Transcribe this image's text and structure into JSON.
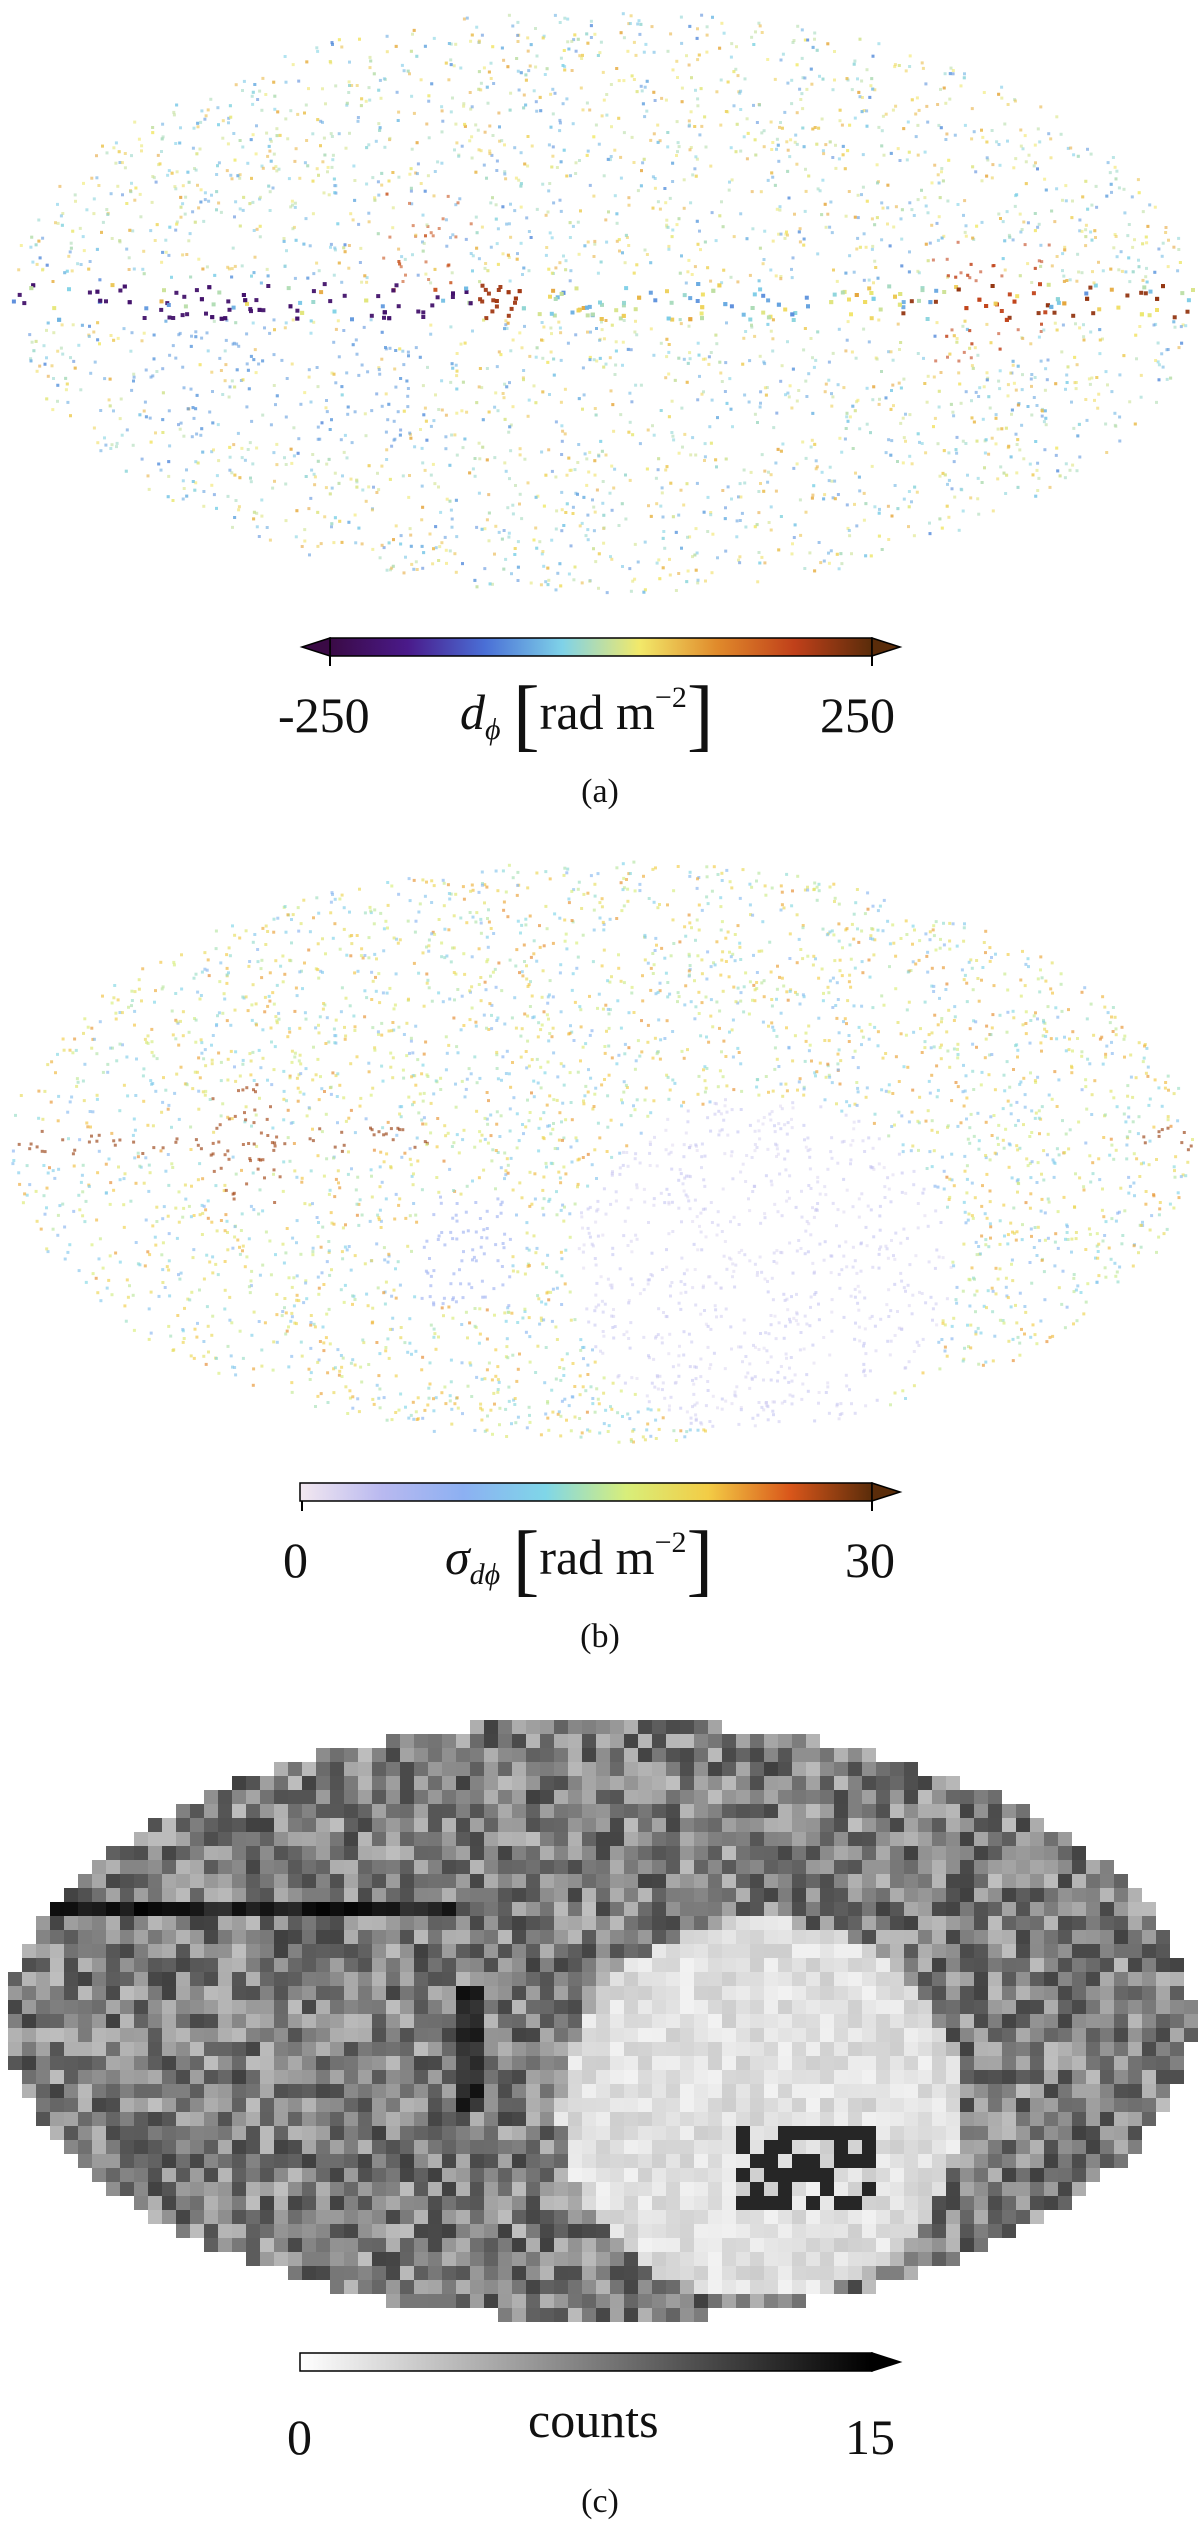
{
  "chart_data": [
    {
      "type": "heatmap",
      "projection": "mollweide",
      "panel": "a",
      "caption": "(a)",
      "colorbar": {
        "label_symbol": "d",
        "label_subscript": "ϕ",
        "unit_text": "rad m",
        "unit_exponent": "−2",
        "vmin": -250,
        "vmax": 250,
        "tick_labels": [
          "-250",
          "250"
        ],
        "colormap": [
          "#3a0a45",
          "#4a1a8a",
          "#4a6fd6",
          "#7fd2e8",
          "#f2e96a",
          "#e08a2b",
          "#c0401a",
          "#5a2c0a"
        ],
        "extend": "both"
      },
      "background_color": "#ffffff"
    },
    {
      "type": "heatmap",
      "projection": "mollweide",
      "panel": "b",
      "caption": "(b)",
      "colorbar": {
        "label_symbol": "σ",
        "label_subscript": "dϕ",
        "unit_text": "rad m",
        "unit_exponent": "−2",
        "vmin": 0,
        "vmax": 30,
        "tick_labels": [
          "0",
          "30"
        ],
        "colormap": [
          "#f3e8f0",
          "#b9b9f0",
          "#8cb0f2",
          "#7fd6e8",
          "#d8ee7a",
          "#f3cc45",
          "#d9561a",
          "#5a2c0a"
        ],
        "extend": "max"
      },
      "background_color": "#ffffff"
    },
    {
      "type": "heatmap",
      "projection": "mollweide",
      "panel": "c",
      "caption": "(c)",
      "colorbar": {
        "label_text": "counts",
        "vmin": 0,
        "vmax": 15,
        "tick_labels": [
          "0",
          "15"
        ],
        "colormap": [
          "#ffffff",
          "#000000"
        ],
        "extend": "max"
      },
      "background_color": "#ffffff"
    }
  ]
}
